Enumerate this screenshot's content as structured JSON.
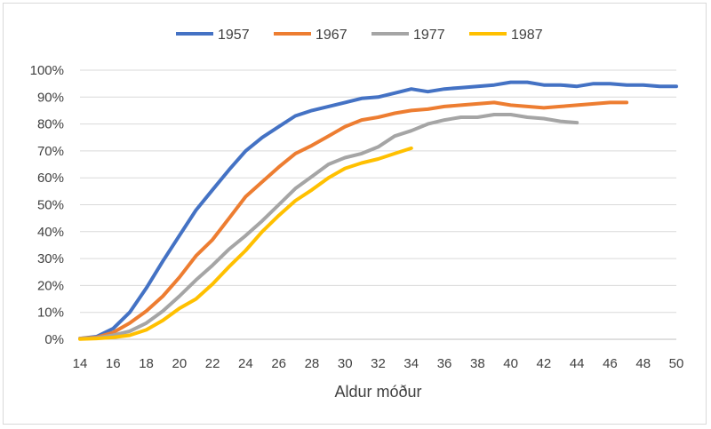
{
  "chart_data": {
    "type": "line",
    "title": "",
    "xlabel": "Aldur móður",
    "ylabel": "",
    "xlim": [
      14,
      50
    ],
    "ylim": [
      0,
      100
    ],
    "x_ticks": [
      "14",
      "16",
      "18",
      "20",
      "22",
      "24",
      "26",
      "28",
      "30",
      "32",
      "34",
      "36",
      "38",
      "40",
      "42",
      "44",
      "46",
      "48",
      "50"
    ],
    "y_ticks": [
      "0%",
      "10%",
      "20%",
      "30%",
      "40%",
      "50%",
      "60%",
      "70%",
      "80%",
      "90%",
      "100%"
    ],
    "grid": true,
    "legend_position": "top",
    "series": [
      {
        "name": "1957",
        "color": "#4472C4",
        "x": [
          14,
          15,
          16,
          17,
          18,
          19,
          20,
          21,
          22,
          23,
          24,
          25,
          26,
          27,
          28,
          29,
          30,
          31,
          32,
          33,
          34,
          35,
          36,
          37,
          38,
          39,
          40,
          41,
          42,
          43,
          44,
          45,
          46,
          47,
          48,
          49,
          50
        ],
        "values": [
          0.3,
          1,
          4,
          10,
          19,
          29,
          38.5,
          48,
          55.5,
          63,
          70,
          75,
          79,
          83,
          85,
          86.5,
          88,
          89.5,
          90,
          91.5,
          93,
          92,
          93,
          93.5,
          94,
          94.5,
          95.5,
          95.5,
          94.5,
          94.5,
          94,
          95,
          95,
          94.5,
          94.5,
          94,
          94
        ]
      },
      {
        "name": "1967",
        "color": "#ED7D31",
        "x": [
          14,
          15,
          16,
          17,
          18,
          19,
          20,
          21,
          22,
          23,
          24,
          25,
          26,
          27,
          28,
          29,
          30,
          31,
          32,
          33,
          34,
          35,
          36,
          37,
          38,
          39,
          40,
          41,
          42,
          43,
          44,
          45,
          46,
          47
        ],
        "values": [
          0.3,
          0.7,
          2.5,
          6,
          10.5,
          16,
          23,
          31,
          37,
          45,
          53,
          58.5,
          64,
          69,
          72,
          75.5,
          79,
          81.5,
          82.5,
          84,
          85,
          85.5,
          86.5,
          87,
          87.5,
          88,
          87,
          86.5,
          86,
          86.5,
          87,
          87.5,
          88,
          88
        ]
      },
      {
        "name": "1977",
        "color": "#A5A5A5",
        "x": [
          14,
          15,
          16,
          17,
          18,
          19,
          20,
          21,
          22,
          23,
          24,
          25,
          26,
          27,
          28,
          29,
          30,
          31,
          32,
          33,
          34,
          35,
          36,
          37,
          38,
          39,
          40,
          41,
          42,
          43,
          44
        ],
        "values": [
          0.2,
          0.5,
          1.5,
          3,
          6,
          10.5,
          16,
          22,
          27.5,
          33.5,
          38.5,
          44,
          50,
          56,
          60.5,
          65,
          67.5,
          69,
          71.5,
          75.5,
          77.5,
          80,
          81.5,
          82.5,
          82.5,
          83.5,
          83.5,
          82.5,
          82,
          81,
          80.5
        ]
      },
      {
        "name": "1987",
        "color": "#FFC000",
        "x": [
          14,
          15,
          16,
          17,
          18,
          19,
          20,
          21,
          22,
          23,
          24,
          25,
          26,
          27,
          28,
          29,
          30,
          31,
          32,
          33,
          34
        ],
        "values": [
          0.1,
          0.3,
          0.7,
          1.5,
          3.5,
          7,
          11.5,
          15,
          20.5,
          27,
          33,
          40,
          46,
          51.5,
          55.5,
          60,
          63.5,
          65.5,
          67,
          69,
          71
        ]
      }
    ]
  }
}
